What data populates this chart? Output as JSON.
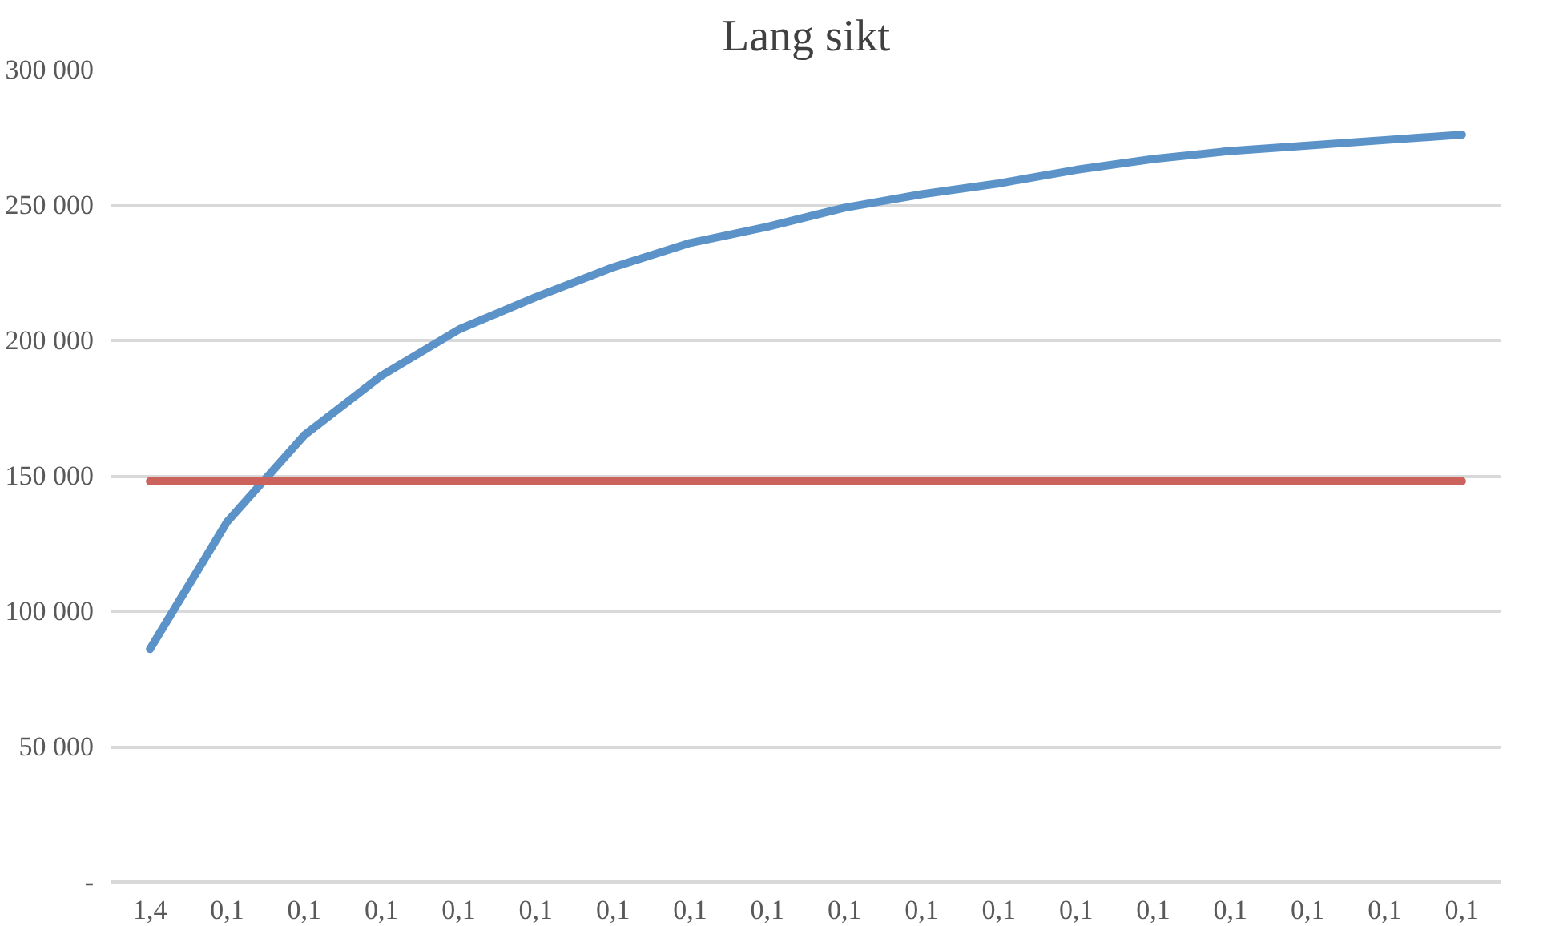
{
  "chart_data": {
    "type": "line",
    "title": "Lang sikt",
    "categories": [
      "1,4",
      "0,1",
      "0,1",
      "0,1",
      "0,1",
      "0,1",
      "0,1",
      "0,1",
      "0,1",
      "0,1",
      "0,1",
      "0,1",
      "0,1",
      "0,1",
      "0,1",
      "0,1",
      "0,1",
      "0,1"
    ],
    "series": [
      {
        "color": "#5b93c9",
        "values": [
          86000,
          133000,
          165000,
          187000,
          204000,
          216000,
          227000,
          236000,
          242000,
          249000,
          254000,
          258000,
          263000,
          267000,
          270000,
          272000,
          274000,
          276000
        ]
      },
      {
        "color": "#cc625c",
        "values": [
          148000,
          148000,
          148000,
          148000,
          148000,
          148000,
          148000,
          148000,
          148000,
          148000,
          148000,
          148000,
          148000,
          148000,
          148000,
          148000,
          148000,
          148000
        ]
      }
    ],
    "ylim": [
      0,
      300000
    ],
    "yticks": [
      {
        "value": 0,
        "label": "-"
      },
      {
        "value": 50000,
        "label": "50 000"
      },
      {
        "value": 100000,
        "label": "100 000"
      },
      {
        "value": 150000,
        "label": "150 000"
      },
      {
        "value": 200000,
        "label": "200 000"
      },
      {
        "value": 250000,
        "label": "250 000"
      },
      {
        "value": 300000,
        "label": "300 000"
      }
    ],
    "grid": "y",
    "marker": "none",
    "line_style": "solid"
  }
}
